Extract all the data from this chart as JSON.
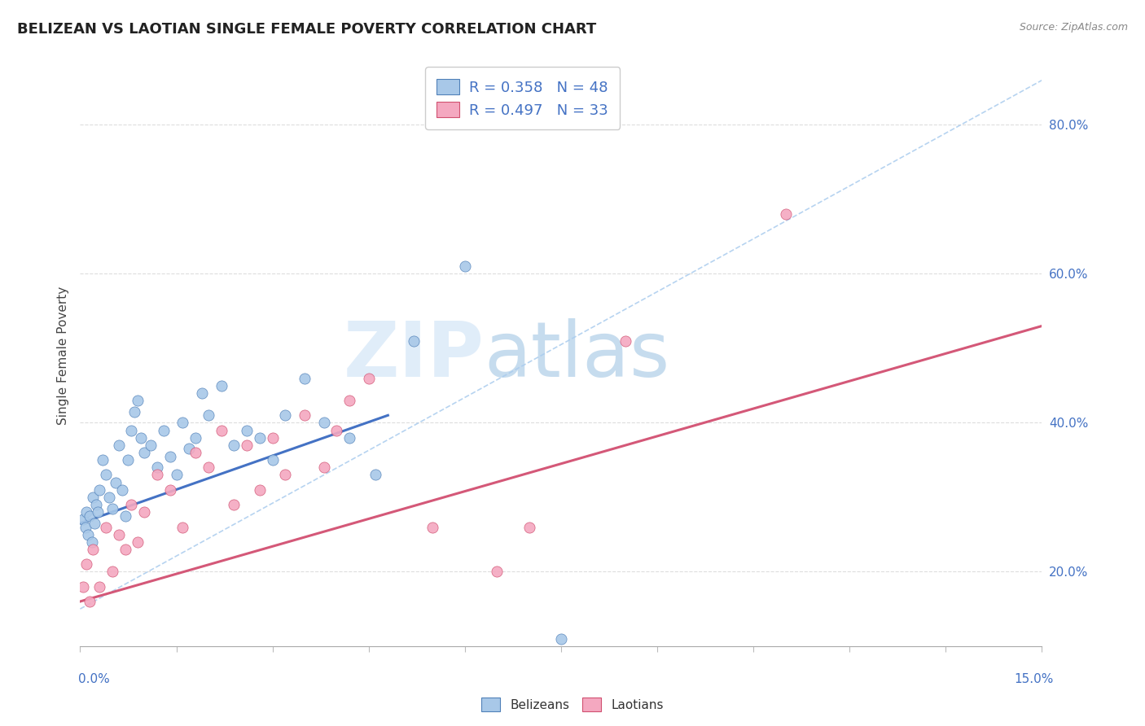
{
  "title": "BELIZEAN VS LAOTIAN SINGLE FEMALE POVERTY CORRELATION CHART",
  "source": "Source: ZipAtlas.com",
  "ylabel": "Single Female Poverty",
  "xlim": [
    0.0,
    15.0
  ],
  "ylim": [
    10.0,
    88.0
  ],
  "belizean_R": 0.358,
  "belizean_N": 48,
  "laotian_R": 0.497,
  "laotian_N": 33,
  "belizean_dot_color": "#a8c8e8",
  "belizean_edge_color": "#5080b8",
  "laotian_dot_color": "#f4a8c0",
  "laotian_edge_color": "#d05070",
  "belizean_line_color": "#4472c4",
  "laotian_line_color": "#d45878",
  "diag_line_color": "#aaccee",
  "legend_color": "#4472c4",
  "watermark_zip_color": "#c0d8f0",
  "watermark_atlas_color": "#90b8d8",
  "bx": [
    0.05,
    0.08,
    0.1,
    0.12,
    0.15,
    0.18,
    0.2,
    0.22,
    0.25,
    0.28,
    0.3,
    0.35,
    0.4,
    0.45,
    0.5,
    0.55,
    0.6,
    0.65,
    0.7,
    0.75,
    0.8,
    0.85,
    0.9,
    0.95,
    1.0,
    1.1,
    1.2,
    1.3,
    1.4,
    1.5,
    1.6,
    1.7,
    1.8,
    1.9,
    2.0,
    2.2,
    2.4,
    2.6,
    2.8,
    3.0,
    3.2,
    3.5,
    3.8,
    4.2,
    4.6,
    5.2,
    6.0,
    7.5
  ],
  "by": [
    27.0,
    26.0,
    28.0,
    25.0,
    27.5,
    24.0,
    30.0,
    26.5,
    29.0,
    28.0,
    31.0,
    35.0,
    33.0,
    30.0,
    28.5,
    32.0,
    37.0,
    31.0,
    27.5,
    35.0,
    39.0,
    41.5,
    43.0,
    38.0,
    36.0,
    37.0,
    34.0,
    39.0,
    35.5,
    33.0,
    40.0,
    36.5,
    38.0,
    44.0,
    41.0,
    45.0,
    37.0,
    39.0,
    38.0,
    35.0,
    41.0,
    46.0,
    40.0,
    38.0,
    33.0,
    51.0,
    61.0,
    11.0
  ],
  "lx": [
    0.05,
    0.1,
    0.15,
    0.2,
    0.3,
    0.4,
    0.5,
    0.6,
    0.7,
    0.8,
    0.9,
    1.0,
    1.2,
    1.4,
    1.6,
    1.8,
    2.0,
    2.2,
    2.4,
    2.6,
    2.8,
    3.0,
    3.2,
    3.5,
    3.8,
    4.0,
    4.2,
    4.5,
    5.5,
    6.5,
    7.0,
    8.5,
    11.0
  ],
  "ly": [
    18.0,
    21.0,
    16.0,
    23.0,
    18.0,
    26.0,
    20.0,
    25.0,
    23.0,
    29.0,
    24.0,
    28.0,
    33.0,
    31.0,
    26.0,
    36.0,
    34.0,
    39.0,
    29.0,
    37.0,
    31.0,
    38.0,
    33.0,
    41.0,
    34.0,
    39.0,
    43.0,
    46.0,
    26.0,
    20.0,
    26.0,
    51.0,
    68.0
  ],
  "belizean_line_x": [
    0.0,
    4.8
  ],
  "belizean_line_y": [
    26.5,
    41.0
  ],
  "laotian_line_x": [
    0.0,
    15.0
  ],
  "laotian_line_y": [
    16.0,
    53.0
  ]
}
